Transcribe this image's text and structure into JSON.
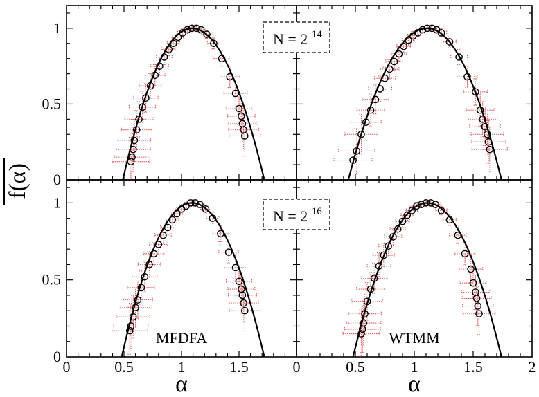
{
  "figure": {
    "ylabel": "f(α)",
    "xlabel": "α",
    "n_labels": [
      {
        "base": "N = 2",
        "exp": "14"
      },
      {
        "base": "N = 2",
        "exp": "16"
      }
    ],
    "colors": {
      "points": "#000000",
      "errorbars": "#e06060",
      "curve": "#000000"
    }
  },
  "chart_data": [
    {
      "type": "scatter",
      "panel": "top-left",
      "xlim": [
        0,
        2
      ],
      "ylim": [
        0,
        1.15
      ],
      "xticks": [],
      "yticks": [
        "0",
        "0.5",
        "1"
      ],
      "annotation": "",
      "points": [
        [
          0.56,
          0.12
        ],
        [
          0.57,
          0.15
        ],
        [
          0.58,
          0.2
        ],
        [
          0.59,
          0.26
        ],
        [
          0.61,
          0.33
        ],
        [
          0.63,
          0.4
        ],
        [
          0.66,
          0.48
        ],
        [
          0.69,
          0.54
        ],
        [
          0.73,
          0.62
        ],
        [
          0.77,
          0.69
        ],
        [
          0.81,
          0.75
        ],
        [
          0.85,
          0.81
        ],
        [
          0.89,
          0.86
        ],
        [
          0.93,
          0.9
        ],
        [
          0.97,
          0.94
        ],
        [
          1.01,
          0.97
        ],
        [
          1.05,
          0.99
        ],
        [
          1.09,
          1.0
        ],
        [
          1.13,
          1.0
        ],
        [
          1.17,
          0.99
        ],
        [
          1.22,
          0.96
        ],
        [
          1.28,
          0.9
        ],
        [
          1.35,
          0.8
        ],
        [
          1.42,
          0.68
        ],
        [
          1.47,
          0.57
        ],
        [
          1.5,
          0.47
        ],
        [
          1.52,
          0.42
        ],
        [
          1.53,
          0.37
        ],
        [
          1.54,
          0.33
        ],
        [
          1.55,
          0.29
        ]
      ],
      "curve": {
        "type": "parabola",
        "x0": 1.09,
        "ymax": 1.0,
        "xmin": 0.49,
        "xmax": 1.72
      }
    },
    {
      "type": "scatter",
      "panel": "top-right",
      "xlim": [
        0,
        2
      ],
      "ylim": [
        0,
        1.15
      ],
      "xticks": [],
      "yticks": [],
      "annotation": "",
      "points": [
        [
          0.48,
          0.13
        ],
        [
          0.51,
          0.19
        ],
        [
          0.55,
          0.3
        ],
        [
          0.59,
          0.38
        ],
        [
          0.63,
          0.46
        ],
        [
          0.67,
          0.53
        ],
        [
          0.71,
          0.6
        ],
        [
          0.75,
          0.67
        ],
        [
          0.79,
          0.73
        ],
        [
          0.83,
          0.78
        ],
        [
          0.87,
          0.83
        ],
        [
          0.91,
          0.88
        ],
        [
          0.95,
          0.92
        ],
        [
          0.99,
          0.95
        ],
        [
          1.03,
          0.97
        ],
        [
          1.07,
          0.99
        ],
        [
          1.11,
          1.0
        ],
        [
          1.15,
          1.0
        ],
        [
          1.19,
          0.99
        ],
        [
          1.23,
          0.97
        ],
        [
          1.3,
          0.91
        ],
        [
          1.38,
          0.81
        ],
        [
          1.45,
          0.68
        ],
        [
          1.52,
          0.58
        ],
        [
          1.56,
          0.46
        ],
        [
          1.58,
          0.4
        ],
        [
          1.6,
          0.35
        ],
        [
          1.62,
          0.3
        ],
        [
          1.63,
          0.25
        ],
        [
          1.64,
          0.2
        ]
      ],
      "curve": {
        "type": "parabola",
        "x0": 1.11,
        "ymax": 1.0,
        "xmin": 0.44,
        "xmax": 1.74
      }
    },
    {
      "type": "scatter",
      "panel": "bottom-left",
      "xlim": [
        0,
        2
      ],
      "ylim": [
        0,
        1.15
      ],
      "xticks": [
        "0",
        "0.5",
        "1",
        "1.5"
      ],
      "yticks": [
        "0",
        "0.5",
        "1"
      ],
      "annotation": "MFDFA",
      "points": [
        [
          0.55,
          0.17
        ],
        [
          0.56,
          0.2
        ],
        [
          0.58,
          0.26
        ],
        [
          0.6,
          0.32
        ],
        [
          0.62,
          0.37
        ],
        [
          0.65,
          0.45
        ],
        [
          0.68,
          0.52
        ],
        [
          0.72,
          0.6
        ],
        [
          0.76,
          0.67
        ],
        [
          0.8,
          0.73
        ],
        [
          0.84,
          0.79
        ],
        [
          0.88,
          0.84
        ],
        [
          0.92,
          0.89
        ],
        [
          0.96,
          0.93
        ],
        [
          1.0,
          0.96
        ],
        [
          1.04,
          0.98
        ],
        [
          1.08,
          1.0
        ],
        [
          1.12,
          1.0
        ],
        [
          1.16,
          0.99
        ],
        [
          1.21,
          0.96
        ],
        [
          1.27,
          0.9
        ],
        [
          1.34,
          0.8
        ],
        [
          1.41,
          0.68
        ],
        [
          1.47,
          0.58
        ],
        [
          1.5,
          0.49
        ],
        [
          1.52,
          0.44
        ],
        [
          1.53,
          0.4
        ],
        [
          1.54,
          0.35
        ],
        [
          1.55,
          0.3
        ]
      ],
      "curve": {
        "type": "parabola",
        "x0": 1.09,
        "ymax": 1.0,
        "xmin": 0.48,
        "xmax": 1.72
      }
    },
    {
      "type": "scatter",
      "panel": "bottom-right",
      "xlim": [
        0,
        2
      ],
      "ylim": [
        0,
        1.15
      ],
      "xticks": [
        "0",
        "0.5",
        "1",
        "1.5",
        "2"
      ],
      "yticks": [],
      "annotation": "WTMM",
      "points": [
        [
          0.55,
          0.15
        ],
        [
          0.56,
          0.18
        ],
        [
          0.57,
          0.22
        ],
        [
          0.58,
          0.28
        ],
        [
          0.6,
          0.36
        ],
        [
          0.63,
          0.44
        ],
        [
          0.66,
          0.51
        ],
        [
          0.7,
          0.59
        ],
        [
          0.74,
          0.66
        ],
        [
          0.78,
          0.72
        ],
        [
          0.82,
          0.78
        ],
        [
          0.86,
          0.83
        ],
        [
          0.9,
          0.88
        ],
        [
          0.94,
          0.92
        ],
        [
          0.98,
          0.95
        ],
        [
          1.02,
          0.98
        ],
        [
          1.06,
          0.99
        ],
        [
          1.1,
          1.0
        ],
        [
          1.14,
          1.0
        ],
        [
          1.18,
          0.99
        ],
        [
          1.23,
          0.95
        ],
        [
          1.3,
          0.89
        ],
        [
          1.37,
          0.79
        ],
        [
          1.43,
          0.67
        ],
        [
          1.48,
          0.57
        ],
        [
          1.5,
          0.48
        ],
        [
          1.52,
          0.42
        ],
        [
          1.53,
          0.38
        ],
        [
          1.54,
          0.33
        ],
        [
          1.55,
          0.28
        ]
      ],
      "curve": {
        "type": "parabola",
        "x0": 1.11,
        "ymax": 1.0,
        "xmin": 0.48,
        "xmax": 1.74
      }
    }
  ]
}
